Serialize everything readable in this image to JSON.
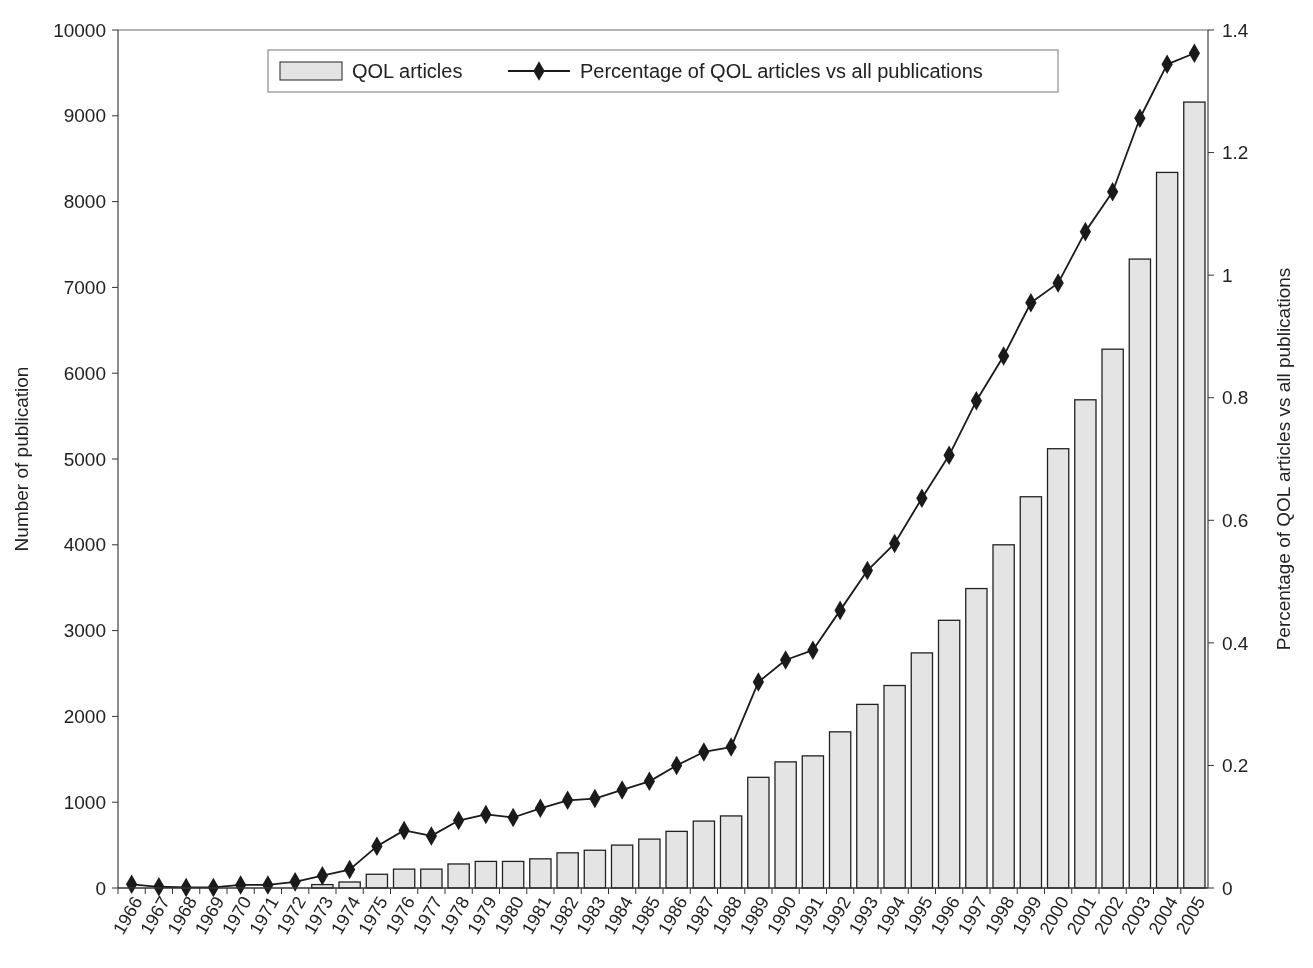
{
  "chart_data": {
    "type": "bar",
    "ylabel": "Number of publication",
    "y2label": "Percentage of QOL articles vs all publications",
    "categories": [
      "1966",
      "1967",
      "1968",
      "1969",
      "1970",
      "1971",
      "1972",
      "1973",
      "1974",
      "1975",
      "1976",
      "1977",
      "1978",
      "1979",
      "1980",
      "1981",
      "1982",
      "1983",
      "1984",
      "1985",
      "1986",
      "1987",
      "1988",
      "1989",
      "1990",
      "1991",
      "1992",
      "1993",
      "1994",
      "1995",
      "1996",
      "1997",
      "1998",
      "1999",
      "2000",
      "2001",
      "2002",
      "2003",
      "2004",
      "2005"
    ],
    "series": [
      {
        "name": "QOL articles",
        "color": "#e4e4e4",
        "values": [
          0,
          0,
          0,
          0,
          0,
          0,
          null,
          40,
          70,
          160,
          220,
          220,
          280,
          310,
          310,
          340,
          410,
          440,
          500,
          570,
          660,
          780,
          840,
          1290,
          1470,
          1540,
          1820,
          2140,
          2360,
          2740,
          3120,
          3490,
          4000,
          4560,
          5120,
          5690,
          6280,
          7330,
          8340,
          9160
        ]
      },
      {
        "name": "Percentage of QOL articles vs all publications",
        "type": "line",
        "axis": "y2",
        "color": "#1a1a1a",
        "marker": "diamond",
        "values": [
          0.006,
          0.002,
          0.001,
          0.001,
          0.005,
          0.005,
          0.01,
          0.02,
          0.03,
          0.068,
          0.094,
          0.085,
          0.11,
          0.12,
          0.115,
          0.13,
          0.143,
          0.146,
          0.16,
          0.174,
          0.2,
          0.222,
          0.23,
          0.336,
          0.372,
          0.388,
          0.453,
          0.518,
          0.562,
          0.636,
          0.706,
          0.795,
          0.868,
          0.955,
          0.987,
          1.071,
          1.136,
          1.256,
          1.344,
          1.362
        ]
      }
    ],
    "ylim": [
      0,
      10000
    ],
    "yticks": [
      0,
      1000,
      2000,
      3000,
      4000,
      5000,
      6000,
      7000,
      8000,
      9000,
      10000
    ],
    "y2lim": [
      0,
      1.4
    ],
    "y2ticks": [
      0,
      {
        "value": 0.2,
        "label": "0.2"
      },
      {
        "value": 0.4,
        "label": "0.4"
      },
      {
        "value": 0.6,
        "label": "0.6"
      },
      {
        "value": 0.8,
        "label": "0.8"
      },
      1,
      {
        "value": 1.2,
        "label": "1.2"
      },
      {
        "value": 1.4,
        "label": "1.4"
      }
    ],
    "grid": false,
    "legend": "top"
  }
}
